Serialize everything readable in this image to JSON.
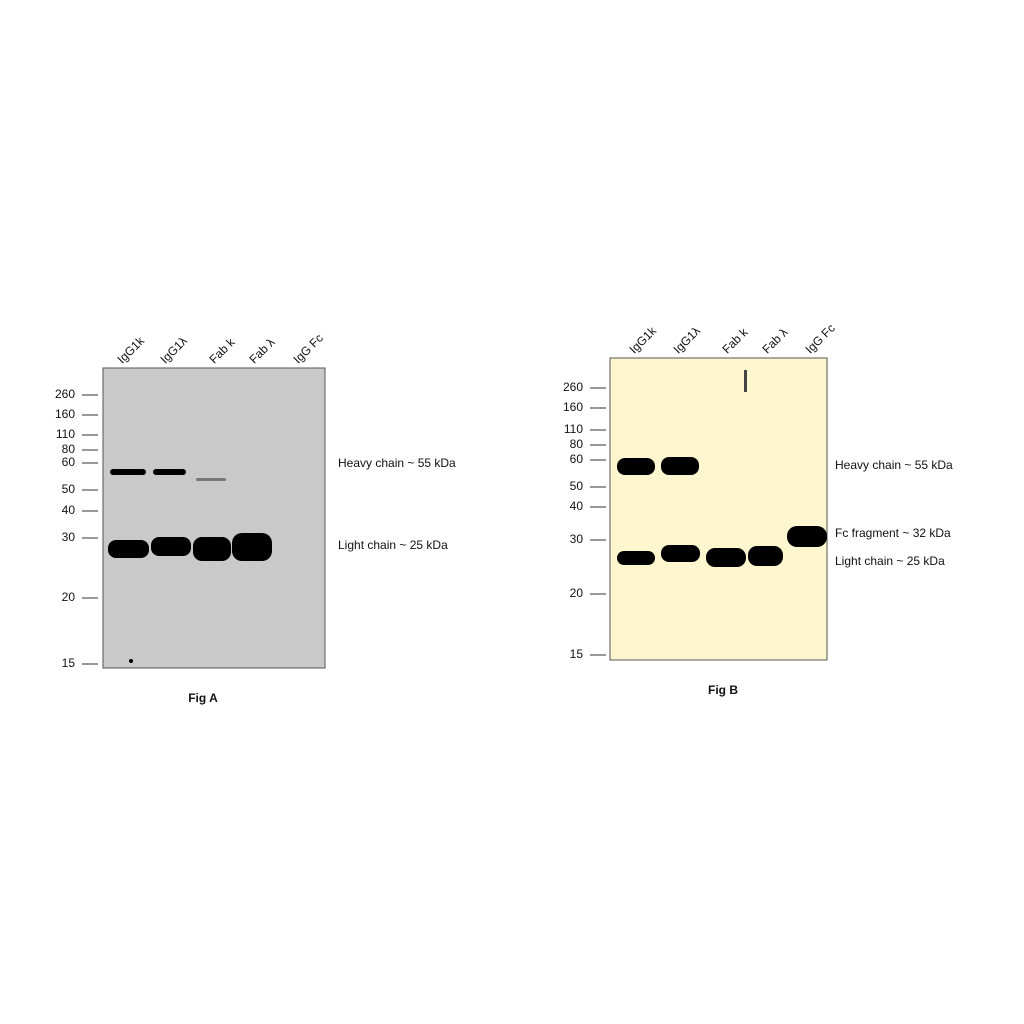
{
  "figures": [
    {
      "caption": "Fig A",
      "lanes": [
        "IgG1k",
        "IgG1λ",
        "Fab k",
        "Fab λ",
        "IgG Fc"
      ],
      "markers": [
        260,
        160,
        110,
        80,
        60,
        50,
        40,
        30,
        20,
        15
      ],
      "annotations": [
        "Heavy chain ~ 55 kDa",
        "Light chain ~ 25 kDa"
      ]
    },
    {
      "caption": "Fig B",
      "lanes": [
        "IgG1k",
        "IgG1λ",
        "Fab k",
        "Fab λ",
        "IgG Fc"
      ],
      "markers": [
        260,
        160,
        110,
        80,
        60,
        50,
        40,
        30,
        20,
        15
      ],
      "annotations": [
        "Heavy chain ~ 55 kDa",
        "Fc fragment ~ 32 kDa",
        "Light chain ~ 25 kDa"
      ]
    }
  ]
}
